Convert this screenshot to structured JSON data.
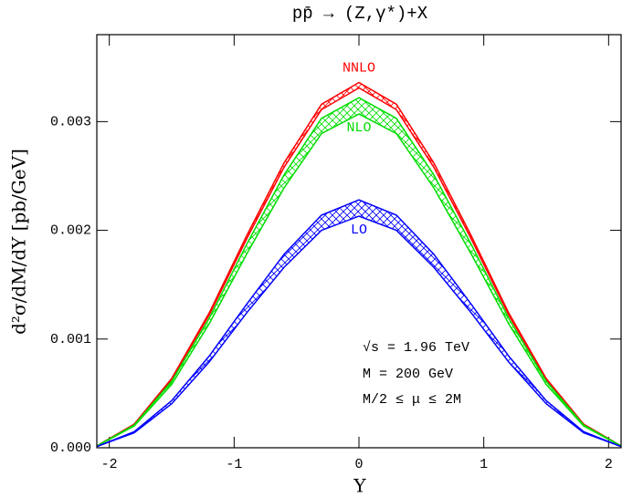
{
  "chart_data": {
    "type": "band",
    "title": "pp̄ → (Z,γ*)+X",
    "x_label": "Y",
    "y_label": "d²σ/dM/dY [pb/GeV]",
    "annotations": [
      "√s = 1.96 TeV",
      "M = 200 GeV",
      "M/2 ≤ μ ≤ 2M"
    ],
    "x": [
      -2.1,
      -1.8,
      -1.5,
      -1.2,
      -0.9,
      -0.6,
      -0.3,
      0,
      0.3,
      0.6,
      0.9,
      1.2,
      1.5,
      1.8,
      2.1
    ],
    "xlim": [
      -2.1,
      2.1
    ],
    "ylim": [
      0,
      0.0038
    ],
    "xticks": [
      -2,
      -1,
      0,
      1,
      2
    ],
    "yticks": [
      {
        "value": 0,
        "label": "0.000"
      },
      {
        "value": 0.001,
        "label": "0.001"
      },
      {
        "value": 0.002,
        "label": "0.002"
      },
      {
        "value": 0.003,
        "label": "0.003"
      }
    ],
    "series": [
      {
        "name": "NNLO",
        "color": "#ff0000",
        "upper": [
          1.68e-05,
          0.000218,
          0.000638,
          0.00124,
          0.00195,
          0.00262,
          0.00316,
          0.00336,
          0.00316,
          0.00262,
          0.00195,
          0.00124,
          0.000638,
          0.000218,
          1.68e-05
        ],
        "lower": [
          1.66e-05,
          0.000215,
          0.000629,
          0.00122,
          0.00192,
          0.00258,
          0.00311,
          0.00331,
          0.00311,
          0.00258,
          0.00192,
          0.00122,
          0.000629,
          0.000215,
          1.66e-05
        ]
      },
      {
        "name": "NLO",
        "color": "#00dd00",
        "upper": [
          1.61e-05,
          0.000209,
          0.000612,
          0.00119,
          0.00187,
          0.00251,
          0.00303,
          0.00322,
          0.00303,
          0.00251,
          0.00187,
          0.00119,
          0.000612,
          0.000209,
          1.61e-05
        ],
        "lower": [
          1.54e-05,
          0.0002,
          0.000583,
          0.00114,
          0.00178,
          0.00239,
          0.00289,
          0.00307,
          0.00289,
          0.00239,
          0.00178,
          0.00114,
          0.000583,
          0.0002,
          1.54e-05
        ]
      },
      {
        "name": "LO",
        "color": "#0000ff",
        "upper": [
          1.14e-05,
          0.000148,
          0.000433,
          0.000843,
          0.00132,
          0.00178,
          0.00214,
          0.00228,
          0.00214,
          0.00178,
          0.00132,
          0.000843,
          0.000433,
          0.000148,
          1.14e-05
        ],
        "lower": [
          1.07e-05,
          0.000138,
          0.000405,
          0.000788,
          0.00124,
          0.00166,
          0.002,
          0.00213,
          0.002,
          0.00166,
          0.00124,
          0.000788,
          0.000405,
          0.000138,
          1.07e-05
        ]
      }
    ]
  }
}
